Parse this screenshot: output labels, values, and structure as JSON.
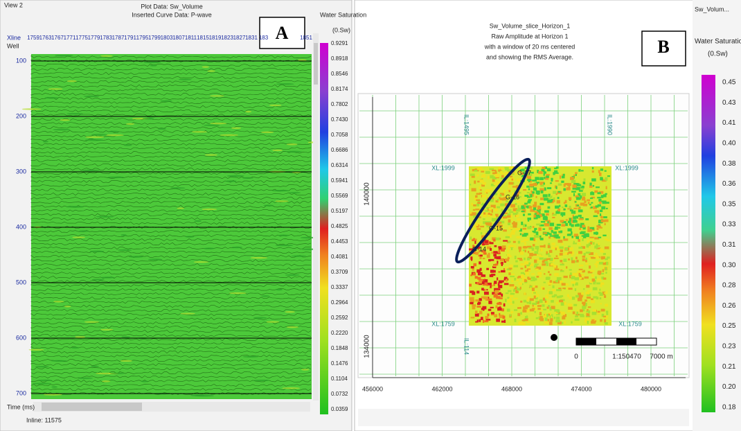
{
  "panel_a": {
    "label": "A",
    "view": "View 2",
    "plot_title": "Plot Data: Sw_Volume",
    "plot_subtitle": "Inserted Curve Data: P-wave",
    "colorbar_title": "Water Saturation",
    "colorbar_unit": "(0.Sw)",
    "colorbar_labels": [
      "0.9291",
      "0.8918",
      "0.8546",
      "0.8174",
      "0.7802",
      "0.7430",
      "0.7058",
      "0.6686",
      "0.6314",
      "0.5941",
      "0.5569",
      "0.5197",
      "0.4825",
      "0.4453",
      "0.4081",
      "0.3709",
      "0.3337",
      "0.2964",
      "0.2592",
      "0.2220",
      "0.1848",
      "0.1476",
      "0.1104",
      "0.0732",
      "0.0359"
    ],
    "xline_label": "Xline",
    "well_label": "Well",
    "xlines": [
      "1759",
      "1763",
      "1767",
      "1771",
      "1775",
      "1779",
      "1783",
      "1787",
      "1791",
      "1795",
      "1799",
      "1803",
      "1807",
      "1811",
      "1815",
      "1819",
      "1823",
      "1827",
      "1831",
      "183",
      "1851"
    ],
    "time_labels": [
      "100",
      "200",
      "300",
      "400",
      "500",
      "600",
      "700"
    ],
    "time_axis": "Time (ms)",
    "inline": "Inline: 11575"
  },
  "panel_b": {
    "label": "B",
    "tab": "Sw_Volum...",
    "title_lines": [
      "Sw_Volume_slice_Horizon_1",
      "Raw Amplitude at Horizon 1",
      "with a window of 20 ms centered",
      "and showing the RMS Average."
    ],
    "colorbar_title": "Water Saturation",
    "colorbar_unit": "(0.Sw)",
    "colorbar_labels": [
      "0.45",
      "0.43",
      "0.41",
      "0.40",
      "0.38",
      "0.36",
      "0.35",
      "0.33",
      "0.31",
      "0.30",
      "0.28",
      "0.26",
      "0.25",
      "0.23",
      "0.21",
      "0.20",
      "0.18"
    ],
    "y_labels": [
      "140000",
      "134000"
    ],
    "x_labels": [
      "456000",
      "462000",
      "468000",
      "474000",
      "480000"
    ],
    "il_labels": [
      "IL:1495",
      "IL:1990",
      "IL:114"
    ],
    "xl_labels": [
      "XL:1999",
      "XL:1999",
      "XL:1759",
      "XL:1759"
    ],
    "wells": [
      "G-17",
      "G-16",
      "G-15",
      "G-14"
    ],
    "scale_labels": [
      "0",
      "1:150470",
      "7000  m"
    ]
  }
}
